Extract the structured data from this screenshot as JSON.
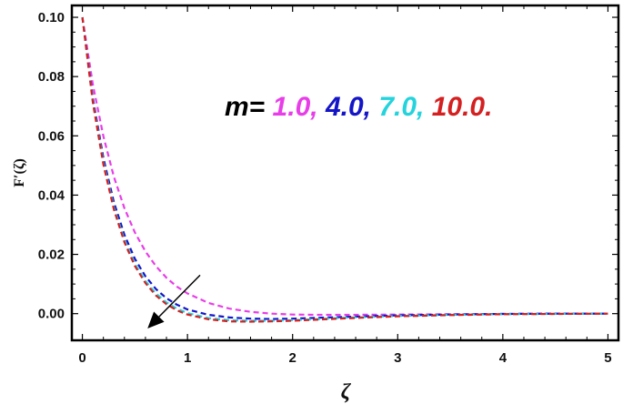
{
  "chart_data": {
    "type": "line",
    "xlabel": "ζ",
    "ylabel": "F′(ζ)",
    "xlim": [
      -0.1,
      5.1
    ],
    "ylim": [
      -0.009,
      0.104
    ],
    "x_ticks": [
      "0",
      "1",
      "2",
      "3",
      "4",
      "5"
    ],
    "y_ticks": [
      "0.00",
      "0.02",
      "0.04",
      "0.06",
      "0.08",
      "0.10"
    ],
    "grid": false,
    "line_style": "dashed",
    "annotation": {
      "prefix": "m=",
      "parts": [
        {
          "text": "1.0,",
          "color": "#e83ee8"
        },
        {
          "text": "4.0,",
          "color": "#1515c8"
        },
        {
          "text": "7.0,",
          "color": "#25d3dc"
        },
        {
          "text": "10.0.",
          "color": "#d42020"
        }
      ],
      "prefix_color": "#000000"
    },
    "arrow": {
      "from": [
        1.12,
        0.013
      ],
      "to": [
        0.62,
        -0.005
      ]
    },
    "series": [
      {
        "color": "#e83ee8",
        "x": [
          0,
          0.1,
          0.2,
          0.3,
          0.4,
          0.5,
          0.6,
          0.7,
          0.8,
          0.9,
          1.0,
          1.2,
          1.4,
          1.6,
          1.8,
          2.0,
          2.25,
          2.5,
          3.0,
          3.5,
          4.0,
          4.5,
          5.0
        ],
        "y": [
          0.1,
          0.0773,
          0.0598,
          0.0462,
          0.0356,
          0.0274,
          0.021,
          0.016,
          0.0121,
          0.0091,
          0.0068,
          0.0036,
          0.0017,
          0.0006,
          0.0,
          -0.0003,
          -0.0004,
          -0.0004,
          -0.0003,
          -0.0002,
          -0.0001,
          0.0,
          0.0
        ]
      },
      {
        "color": "#1515c8",
        "x": [
          0,
          0.1,
          0.2,
          0.3,
          0.4,
          0.5,
          0.6,
          0.7,
          0.8,
          0.9,
          1.0,
          1.2,
          1.4,
          1.6,
          1.8,
          2.0,
          2.25,
          2.5,
          3.0,
          3.5,
          4.0,
          4.5,
          5.0
        ],
        "y": [
          0.1,
          0.0727,
          0.0525,
          0.0376,
          0.0266,
          0.0185,
          0.0126,
          0.0083,
          0.0052,
          0.003,
          0.0014,
          -0.0004,
          -0.0013,
          -0.0017,
          -0.0018,
          -0.0017,
          -0.0014,
          -0.0011,
          -0.0006,
          -0.0003,
          -0.0001,
          0.0,
          0.0
        ]
      },
      {
        "color": "#25d3dc",
        "x": [
          0,
          0.1,
          0.2,
          0.3,
          0.4,
          0.5,
          0.6,
          0.7,
          0.8,
          0.9,
          1.0,
          1.2,
          1.4,
          1.6,
          1.8,
          2.0,
          2.25,
          2.5,
          3.0,
          3.5,
          4.0,
          4.5,
          5.0
        ],
        "y": [
          0.1,
          0.0717,
          0.051,
          0.0359,
          0.0248,
          0.0168,
          0.011,
          0.0068,
          0.0038,
          0.0017,
          0.0002,
          -0.0015,
          -0.0022,
          -0.0024,
          -0.0024,
          -0.0022,
          -0.0018,
          -0.0014,
          -0.0008,
          -0.0004,
          -0.0002,
          -0.0001,
          0.0
        ]
      },
      {
        "color": "#d42020",
        "x": [
          0,
          0.1,
          0.2,
          0.3,
          0.4,
          0.5,
          0.6,
          0.7,
          0.8,
          0.9,
          1.0,
          1.2,
          1.4,
          1.6,
          1.8,
          2.0,
          2.25,
          2.5,
          3.0,
          3.5,
          4.0,
          4.5,
          5.0
        ],
        "y": [
          0.1,
          0.0712,
          0.0503,
          0.0352,
          0.0241,
          0.0161,
          0.0103,
          0.0061,
          0.0032,
          0.0011,
          -0.0003,
          -0.0019,
          -0.0026,
          -0.0027,
          -0.0026,
          -0.0024,
          -0.002,
          -0.0016,
          -0.0009,
          -0.0005,
          -0.0002,
          -0.0001,
          0.0
        ]
      }
    ]
  }
}
